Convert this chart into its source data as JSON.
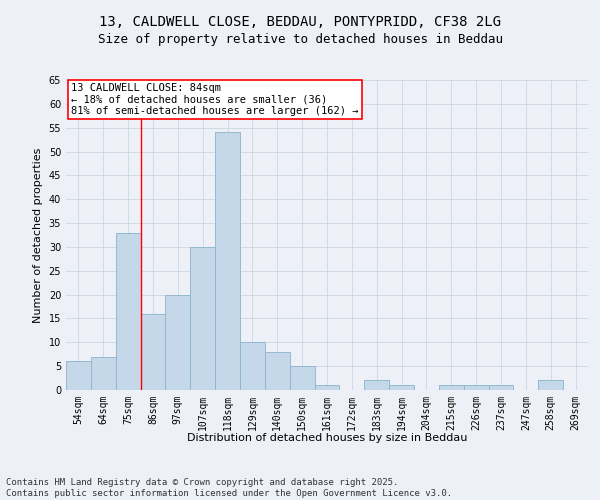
{
  "title_line1": "13, CALDWELL CLOSE, BEDDAU, PONTYPRIDD, CF38 2LG",
  "title_line2": "Size of property relative to detached houses in Beddau",
  "xlabel": "Distribution of detached houses by size in Beddau",
  "ylabel": "Number of detached properties",
  "footnote1": "Contains HM Land Registry data © Crown copyright and database right 2025.",
  "footnote2": "Contains public sector information licensed under the Open Government Licence v3.0.",
  "bar_labels": [
    "54sqm",
    "64sqm",
    "75sqm",
    "86sqm",
    "97sqm",
    "107sqm",
    "118sqm",
    "129sqm",
    "140sqm",
    "150sqm",
    "161sqm",
    "172sqm",
    "183sqm",
    "194sqm",
    "204sqm",
    "215sqm",
    "226sqm",
    "237sqm",
    "247sqm",
    "258sqm",
    "269sqm"
  ],
  "bar_values": [
    6,
    7,
    33,
    16,
    20,
    30,
    54,
    10,
    8,
    5,
    1,
    0,
    2,
    1,
    0,
    1,
    1,
    1,
    0,
    2,
    0
  ],
  "bar_color": "#c5d8ea",
  "bar_edgecolor": "#8ab4cc",
  "vline_x": 2.5,
  "vline_color": "red",
  "annotation_text": "13 CALDWELL CLOSE: 84sqm\n← 18% of detached houses are smaller (36)\n81% of semi-detached houses are larger (162) →",
  "annotation_box_color": "white",
  "annotation_box_edgecolor": "red",
  "ylim": [
    0,
    65
  ],
  "yticks": [
    0,
    5,
    10,
    15,
    20,
    25,
    30,
    35,
    40,
    45,
    50,
    55,
    60,
    65
  ],
  "grid_color": "#ccd5e0",
  "bg_color": "#edf1f7",
  "title_fontsize": 10,
  "subtitle_fontsize": 9,
  "label_fontsize": 8,
  "tick_fontsize": 7,
  "annotation_fontsize": 7.5,
  "footnote_fontsize": 6.5
}
